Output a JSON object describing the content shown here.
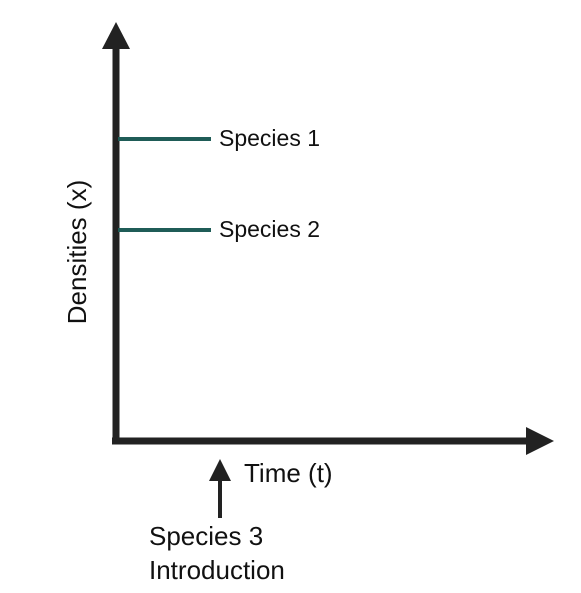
{
  "colors": {
    "axis": "#222222",
    "species_line": "#1f5c57",
    "text": "#111111"
  },
  "y_axis_label": "Densities (x)",
  "x_axis_label": "Time (t)",
  "species": [
    {
      "name": "Species 1"
    },
    {
      "name": "Species 2"
    }
  ],
  "event": {
    "line1": "Species 3",
    "line2": "Introduction"
  }
}
